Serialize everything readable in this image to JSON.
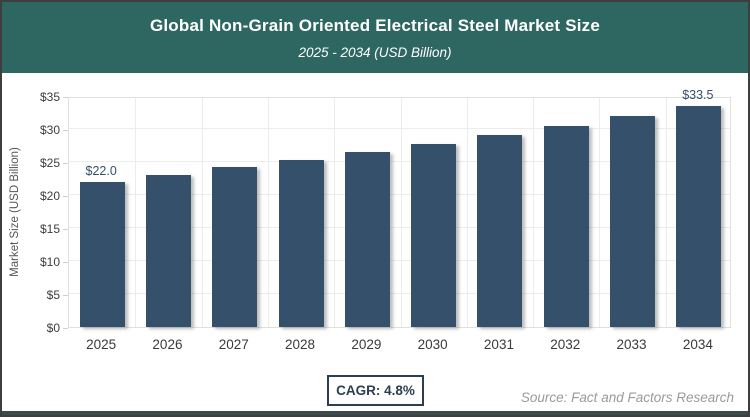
{
  "header": {
    "title": "Global Non-Grain Oriented Electrical Steel Market Size",
    "subtitle": "2025 - 2034 (USD Billion)",
    "background_color": "#2e6761",
    "text_color": "#ffffff"
  },
  "chart_data": {
    "type": "bar",
    "categories": [
      "2025",
      "2026",
      "2027",
      "2028",
      "2029",
      "2030",
      "2031",
      "2032",
      "2033",
      "2034"
    ],
    "values": [
      22.0,
      23.1,
      24.2,
      25.3,
      26.5,
      27.8,
      29.1,
      30.5,
      32.0,
      33.5
    ],
    "title": "Global Non-Grain Oriented Electrical Steel Market Size 2025 - 2034 (USD Billion)",
    "xlabel": "",
    "ylabel": "Market Size (USD Billion)",
    "ylim": [
      0,
      35
    ],
    "ytick_step": 5,
    "ytick_prefix": "$",
    "grid": true,
    "legend": false,
    "bar_color": "#35506b",
    "bar_labels": [
      {
        "index": 0,
        "text": "$22.0"
      },
      {
        "index": 9,
        "text": "$33.5"
      }
    ],
    "label_color": "#35506b"
  },
  "footer": {
    "cagr_label": "CAGR: 4.8%",
    "source": "Source: Fact and Factors Research"
  }
}
